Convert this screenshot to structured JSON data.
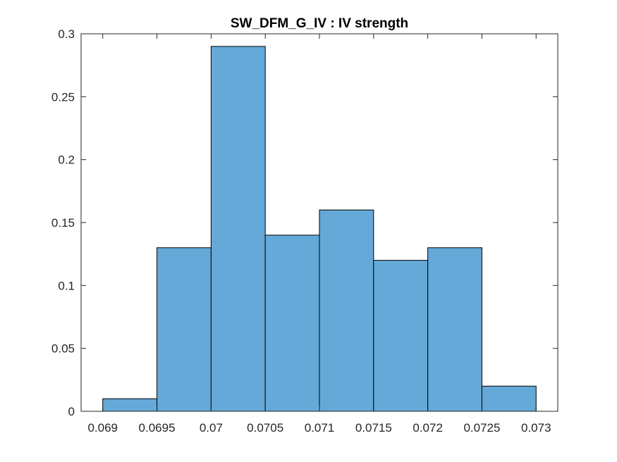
{
  "chart_data": {
    "type": "bar",
    "title": "SW_DFM_G_IV : IV strength",
    "xlabel": "",
    "ylabel": "",
    "bin_edges": [
      0.069,
      0.0695,
      0.07,
      0.0705,
      0.071,
      0.0715,
      0.072,
      0.0725,
      0.073
    ],
    "values": [
      0.01,
      0.13,
      0.29,
      0.14,
      0.16,
      0.12,
      0.13,
      0.02
    ],
    "xlim": [
      0.0688,
      0.0732
    ],
    "ylim": [
      0,
      0.3
    ],
    "xticks": [
      0.069,
      0.0695,
      0.07,
      0.0705,
      0.071,
      0.0715,
      0.072,
      0.0725,
      0.073
    ],
    "xtick_labels": [
      "0.069",
      "0.0695",
      "0.07",
      "0.0705",
      "0.071",
      "0.0715",
      "0.072",
      "0.0725",
      "0.073"
    ],
    "yticks": [
      0,
      0.05,
      0.1,
      0.15,
      0.2,
      0.25,
      0.3
    ],
    "ytick_labels": [
      "0",
      "0.05",
      "0.1",
      "0.15",
      "0.2",
      "0.25",
      "0.3"
    ],
    "grid": false,
    "legend": "none",
    "bar_color": "#64a9d8",
    "edge_color": "#000000"
  }
}
